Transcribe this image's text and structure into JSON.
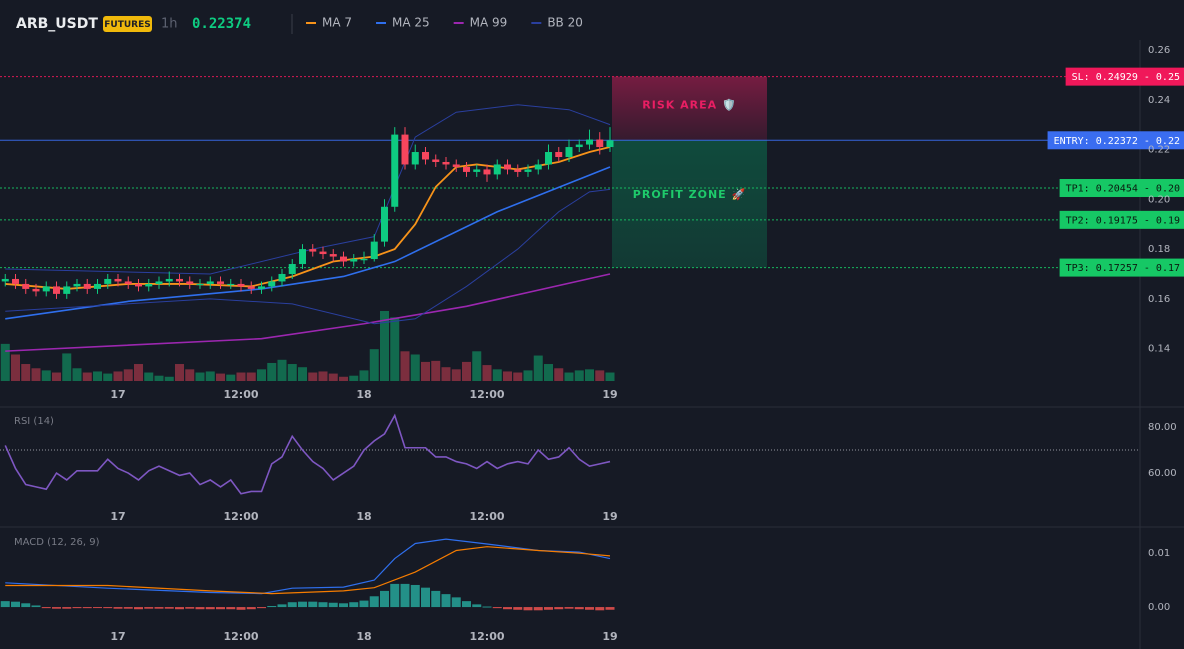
{
  "chart_data": [
    {
      "type": "candlestick",
      "title": "ARB_USDT",
      "badge": "FUTURES",
      "interval": "1h",
      "last_price": 0.22374,
      "categories": [
        null,
        null,
        null,
        null,
        null,
        null,
        null,
        null,
        null,
        null,
        null,
        "17",
        null,
        null,
        null,
        null,
        null,
        null,
        null,
        null,
        null,
        null,
        null,
        "12:00",
        null,
        null,
        null,
        null,
        null,
        null,
        null,
        null,
        null,
        null,
        null,
        "18",
        null,
        null,
        null,
        null,
        null,
        null,
        null,
        null,
        null,
        null,
        null,
        "12:00",
        null,
        null,
        null,
        null,
        null,
        null,
        null,
        null,
        null,
        null,
        null,
        "19"
      ],
      "ohlc": [
        [
          0.167,
          0.17,
          0.165,
          0.168
        ],
        [
          0.168,
          0.17,
          0.164,
          0.166
        ],
        [
          0.166,
          0.168,
          0.162,
          0.164
        ],
        [
          0.164,
          0.166,
          0.161,
          0.163
        ],
        [
          0.163,
          0.167,
          0.161,
          0.165
        ],
        [
          0.165,
          0.167,
          0.16,
          0.162
        ],
        [
          0.162,
          0.167,
          0.16,
          0.165
        ],
        [
          0.165,
          0.168,
          0.163,
          0.166
        ],
        [
          0.166,
          0.168,
          0.162,
          0.164
        ],
        [
          0.164,
          0.168,
          0.162,
          0.166
        ],
        [
          0.166,
          0.17,
          0.164,
          0.168
        ],
        [
          0.168,
          0.17,
          0.165,
          0.167
        ],
        [
          0.167,
          0.169,
          0.164,
          0.166
        ],
        [
          0.166,
          0.168,
          0.163,
          0.165
        ],
        [
          0.165,
          0.168,
          0.163,
          0.166
        ],
        [
          0.166,
          0.169,
          0.164,
          0.167
        ],
        [
          0.167,
          0.171,
          0.165,
          0.168
        ],
        [
          0.168,
          0.17,
          0.165,
          0.167
        ],
        [
          0.167,
          0.169,
          0.164,
          0.166
        ],
        [
          0.166,
          0.168,
          0.164,
          0.166
        ],
        [
          0.166,
          0.169,
          0.164,
          0.167
        ],
        [
          0.167,
          0.169,
          0.164,
          0.166
        ],
        [
          0.166,
          0.168,
          0.164,
          0.166
        ],
        [
          0.166,
          0.168,
          0.163,
          0.165
        ],
        [
          0.165,
          0.167,
          0.162,
          0.164
        ],
        [
          0.164,
          0.167,
          0.162,
          0.165
        ],
        [
          0.165,
          0.169,
          0.163,
          0.167
        ],
        [
          0.167,
          0.172,
          0.165,
          0.17
        ],
        [
          0.17,
          0.176,
          0.168,
          0.174
        ],
        [
          0.174,
          0.182,
          0.172,
          0.18
        ],
        [
          0.18,
          0.182,
          0.177,
          0.179
        ],
        [
          0.179,
          0.181,
          0.176,
          0.178
        ],
        [
          0.178,
          0.18,
          0.175,
          0.177
        ],
        [
          0.177,
          0.179,
          0.173,
          0.175
        ],
        [
          0.175,
          0.178,
          0.173,
          0.176
        ],
        [
          0.176,
          0.179,
          0.174,
          0.176
        ],
        [
          0.176,
          0.186,
          0.175,
          0.183
        ],
        [
          0.183,
          0.2,
          0.181,
          0.197
        ],
        [
          0.197,
          0.229,
          0.195,
          0.226
        ],
        [
          0.226,
          0.229,
          0.212,
          0.214
        ],
        [
          0.214,
          0.222,
          0.212,
          0.219
        ],
        [
          0.219,
          0.221,
          0.214,
          0.216
        ],
        [
          0.216,
          0.218,
          0.213,
          0.215
        ],
        [
          0.215,
          0.217,
          0.212,
          0.214
        ],
        [
          0.214,
          0.216,
          0.211,
          0.213
        ],
        [
          0.213,
          0.215,
          0.209,
          0.211
        ],
        [
          0.211,
          0.214,
          0.209,
          0.212
        ],
        [
          0.212,
          0.214,
          0.207,
          0.21
        ],
        [
          0.21,
          0.216,
          0.208,
          0.214
        ],
        [
          0.214,
          0.216,
          0.21,
          0.212
        ],
        [
          0.212,
          0.214,
          0.209,
          0.211
        ],
        [
          0.211,
          0.214,
          0.209,
          0.212
        ],
        [
          0.212,
          0.216,
          0.21,
          0.214
        ],
        [
          0.214,
          0.222,
          0.212,
          0.219
        ],
        [
          0.219,
          0.221,
          0.215,
          0.217
        ],
        [
          0.217,
          0.224,
          0.215,
          0.221
        ],
        [
          0.221,
          0.224,
          0.219,
          0.222
        ],
        [
          0.222,
          0.228,
          0.22,
          0.224
        ],
        [
          0.224,
          0.227,
          0.218,
          0.221
        ],
        [
          0.221,
          0.229,
          0.219,
          0.2237
        ]
      ],
      "volume": [
        35,
        25,
        16,
        12,
        10,
        8,
        26,
        12,
        8,
        9,
        7,
        9,
        11,
        16,
        8,
        5,
        4,
        16,
        11,
        8,
        9,
        7,
        6,
        8,
        8,
        11,
        17,
        20,
        16,
        13,
        8,
        9,
        7,
        4,
        5,
        10,
        30,
        66,
        60,
        28,
        25,
        18,
        19,
        13,
        11,
        18,
        28,
        15,
        11,
        9,
        8,
        10,
        24,
        16,
        12,
        8,
        10,
        11,
        10,
        8
      ],
      "up_color": "#0ecb81",
      "down_color": "#f6465d",
      "ylim": [
        0.127,
        0.262
      ],
      "yticks": [
        0.14,
        0.16,
        0.18,
        {
          "value": 0.2,
          "label": "0.20"
        },
        0.22,
        0.24,
        0.26
      ],
      "series": [
        {
          "name": "MA 7",
          "color": "#f7931a",
          "x": [
            0,
            6,
            12,
            18,
            24,
            28,
            32,
            36,
            38,
            40,
            42,
            44,
            46,
            50,
            54,
            57,
            59
          ],
          "values": [
            0.166,
            0.164,
            0.166,
            0.166,
            0.165,
            0.169,
            0.175,
            0.177,
            0.18,
            0.19,
            0.205,
            0.213,
            0.214,
            0.212,
            0.215,
            0.219,
            0.221
          ]
        },
        {
          "name": "MA 25",
          "color": "#2f6fed",
          "x": [
            0,
            12,
            25,
            33,
            38,
            48,
            59
          ],
          "values": [
            0.152,
            0.159,
            0.164,
            0.169,
            0.175,
            0.195,
            0.213
          ]
        },
        {
          "name": "MA 99",
          "color": "#9c27b0",
          "x": [
            0,
            25,
            35,
            45,
            59
          ],
          "values": [
            0.139,
            0.144,
            0.15,
            0.157,
            0.17
          ]
        },
        {
          "name": "BB 20",
          "color": "#2a3f9e",
          "lines": [
            {
              "x": [
                0,
                20,
                30,
                36,
                40,
                44,
                50,
                55,
                59
              ],
              "values": [
                0.172,
                0.17,
                0.18,
                0.185,
                0.225,
                0.235,
                0.238,
                0.236,
                0.23
              ]
            },
            {
              "x": [
                0,
                20,
                28,
                36,
                40,
                45,
                50,
                54,
                57,
                59
              ],
              "values": [
                0.155,
                0.16,
                0.158,
                0.15,
                0.152,
                0.165,
                0.18,
                0.195,
                0.203,
                0.204
              ]
            }
          ]
        }
      ],
      "levels": [
        {
          "value": 0.24929,
          "label": "SL: 0.24929 - 0.25",
          "color": "#f0185a",
          "dash": true
        },
        {
          "value": 0.22372,
          "label": "ENTRY: 0.22372 - 0.22",
          "color": "#3a6df0",
          "dash": false
        },
        {
          "value": 0.20454,
          "label": "TP1: 0.20454 - 0.20",
          "color": "#16c865",
          "dash": true
        },
        {
          "value": 0.19175,
          "label": "TP2: 0.19175 - 0.19",
          "color": "#16c865",
          "dash": true
        },
        {
          "value": 0.17257,
          "label": "TP3: 0.17257 - 0.17",
          "color": "#16c865",
          "dash": true
        }
      ],
      "zones": [
        {
          "label": "RISK AREA 🛡️",
          "color": "#e91e63"
        },
        {
          "label": "PROFIT ZONE 🚀",
          "color": "#1ecb6b"
        }
      ]
    },
    {
      "type": "line",
      "title": "RSI (14)",
      "color": "#7e57c2",
      "categories": [
        null,
        null,
        null,
        null,
        null,
        null,
        null,
        null,
        null,
        null,
        null,
        "17",
        null,
        null,
        null,
        null,
        null,
        null,
        null,
        null,
        null,
        null,
        null,
        "12:00",
        null,
        null,
        null,
        null,
        null,
        null,
        null,
        null,
        null,
        null,
        null,
        "18",
        null,
        null,
        null,
        null,
        null,
        null,
        null,
        null,
        null,
        null,
        null,
        "12:00",
        null,
        null,
        null,
        null,
        null,
        null,
        null,
        null,
        null,
        null,
        null,
        "19"
      ],
      "values": [
        72,
        62,
        55,
        54,
        53,
        60,
        57,
        61,
        61,
        61,
        66,
        62,
        60,
        57,
        61,
        63,
        61,
        59,
        60,
        55,
        57,
        54,
        57,
        51,
        52,
        52,
        64,
        67,
        76,
        70,
        65,
        62,
        57,
        60,
        63,
        70,
        74,
        77,
        85,
        71,
        71,
        71,
        67,
        67,
        65,
        64,
        62,
        65,
        62,
        64,
        65,
        64,
        70,
        66,
        67,
        71,
        66,
        63,
        64,
        65
      ],
      "reference_line": 70,
      "ylim": [
        48.3,
        87.4
      ],
      "yticks": [
        {
          "value": 60,
          "label": "60.00"
        },
        {
          "value": 80,
          "label": "80.00"
        }
      ]
    },
    {
      "type": "macd",
      "title": "MACD (12, 26, 9)",
      "categories": [
        null,
        null,
        null,
        null,
        null,
        null,
        null,
        null,
        null,
        null,
        null,
        "17",
        null,
        null,
        null,
        null,
        null,
        null,
        null,
        null,
        null,
        null,
        null,
        "12:00",
        null,
        null,
        null,
        null,
        null,
        null,
        null,
        null,
        null,
        null,
        null,
        "18",
        null,
        null,
        null,
        null,
        null,
        null,
        null,
        null,
        null,
        null,
        null,
        "12:00",
        null,
        null,
        null,
        null,
        null,
        null,
        null,
        null,
        null,
        null,
        null,
        "19"
      ],
      "histogram": [
        0.0011,
        0.001,
        0.0007,
        0.0003,
        -0.0002,
        -0.0003,
        -0.0003,
        -0.0002,
        -0.0002,
        -0.0001,
        -0.0002,
        -0.0003,
        -0.0003,
        -0.0004,
        -0.0003,
        -0.0003,
        -0.0003,
        -0.0004,
        -0.0003,
        -0.0004,
        -0.0004,
        -0.0004,
        -0.0004,
        -0.0005,
        -0.0004,
        -0.0002,
        0.0002,
        0.0005,
        0.0009,
        0.001,
        0.001,
        0.0009,
        0.0008,
        0.0007,
        0.0009,
        0.0012,
        0.002,
        0.003,
        0.0043,
        0.0043,
        0.0041,
        0.0036,
        0.003,
        0.0024,
        0.0018,
        0.0011,
        0.0005,
        0.0001,
        -0.0002,
        -0.0004,
        -0.0005,
        -0.0006,
        -0.0006,
        -0.0005,
        -0.0004,
        -0.0003,
        -0.0004,
        -0.0005,
        -0.0006,
        -0.0005
      ],
      "up_color": "#26a69a",
      "down_color": "#ef5350",
      "series": [
        {
          "color": "#2f6fed",
          "x": [
            0,
            10,
            20,
            25,
            28,
            33,
            36,
            38,
            40,
            43,
            47,
            52,
            56,
            59
          ],
          "values": [
            0.0045,
            0.0035,
            0.0027,
            0.0025,
            0.0035,
            0.0037,
            0.005,
            0.009,
            0.0118,
            0.0126,
            0.0117,
            0.0105,
            0.0102,
            0.009
          ]
        },
        {
          "color": "#f57c00",
          "x": [
            0,
            10,
            20,
            26,
            33,
            36,
            40,
            44,
            47,
            52,
            56,
            59
          ],
          "values": [
            0.004,
            0.004,
            0.003,
            0.0025,
            0.003,
            0.0036,
            0.0065,
            0.0105,
            0.0112,
            0.0105,
            0.01,
            0.0095
          ]
        }
      ],
      "ylim": [
        -0.0024,
        0.0143
      ],
      "yticks": [
        {
          "value": 0,
          "label": "0.00"
        },
        0.01
      ]
    }
  ]
}
